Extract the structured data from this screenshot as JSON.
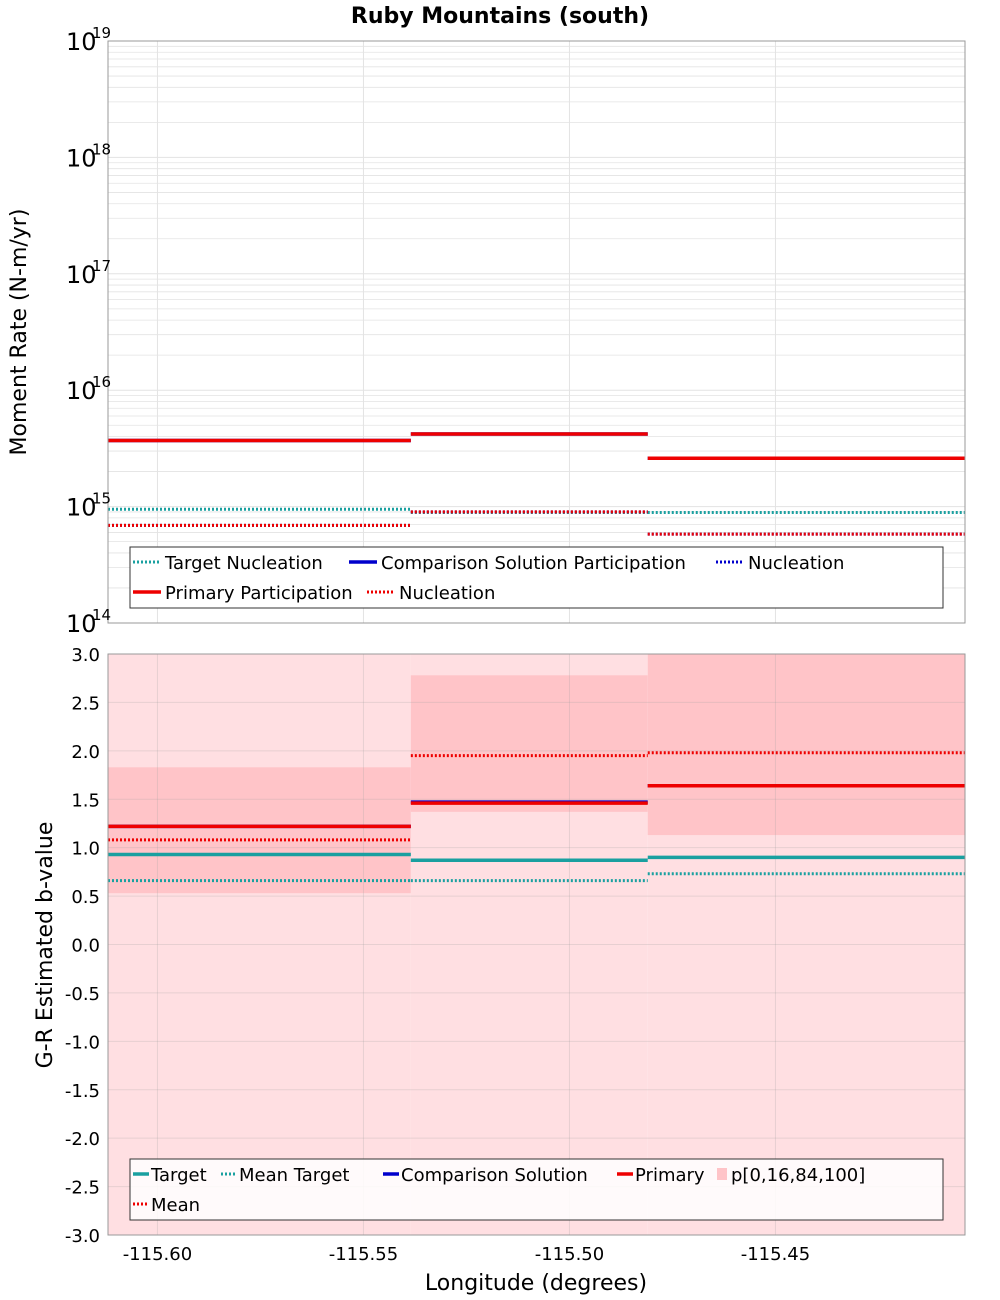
{
  "page": {
    "title": "Ruby Mountains (south)",
    "x_label": "Longitude (degrees)"
  },
  "colors": {
    "target": "#1aa0a0",
    "comparison": "#0000cc",
    "primary": "#ee0000",
    "band_outer": "#ffdfe2",
    "band_inner": "#ffc4c8",
    "grid": "#e3e3e3",
    "frame": "#999999"
  },
  "chart_data": [
    {
      "id": "moment",
      "type": "line",
      "ylabel": "Moment Rate (N-m/yr)",
      "yscale": "log",
      "ylim_exp": [
        14,
        19
      ],
      "xlim": [
        -115.612,
        -115.404
      ],
      "x_ticks": [
        -115.6,
        -115.55,
        -115.5,
        -115.45
      ],
      "y_tick_labels": [
        {
          "base": "10",
          "exp": "14",
          "value": 100000000000000.0
        },
        {
          "base": "10",
          "exp": "15",
          "value": 1000000000000000.0
        },
        {
          "base": "10",
          "exp": "16",
          "value": 1e+16
        },
        {
          "base": "10",
          "exp": "17",
          "value": 1e+17
        },
        {
          "base": "10",
          "exp": "18",
          "value": 1e+18
        },
        {
          "base": "10",
          "exp": "19",
          "value": 1e+19
        }
      ],
      "bins": [
        [
          -115.612,
          -115.5385
        ],
        [
          -115.5385,
          -115.481
        ],
        [
          -115.481,
          -115.404
        ]
      ],
      "series": [
        {
          "name": "Target Nucleation",
          "color_key": "target",
          "style": "dotted",
          "values": [
            950000000000000.0,
            890000000000000.0,
            890000000000000.0
          ]
        },
        {
          "name": "Comparison Solution Participation",
          "color_key": "comparison",
          "style": "solid",
          "values": [
            3700000000000000.0,
            4200000000000000.0,
            2600000000000000.0
          ]
        },
        {
          "name": "Comparison Nucleation",
          "color_key": "comparison",
          "style": "dotted",
          "values": [
            690000000000000.0,
            900000000000000.0,
            580000000000000.0
          ]
        },
        {
          "name": "Primary Participation",
          "color_key": "primary",
          "style": "solid",
          "values": [
            3700000000000000.0,
            4200000000000000.0,
            2600000000000000.0
          ]
        },
        {
          "name": "Primary Nucleation",
          "color_key": "primary",
          "style": "dotted",
          "values": [
            690000000000000.0,
            900000000000000.0,
            580000000000000.0
          ]
        }
      ],
      "legend": {
        "position": "bottom",
        "items": [
          {
            "label": "Target Nucleation",
            "color_key": "target",
            "style": "dotted"
          },
          {
            "label": "Comparison Solution Participation",
            "color_key": "comparison",
            "style": "solid"
          },
          {
            "label": "Nucleation",
            "color_key": "comparison",
            "style": "dotted"
          },
          {
            "label": "Primary Participation",
            "color_key": "primary",
            "style": "solid"
          },
          {
            "label": "Nucleation",
            "color_key": "primary",
            "style": "dotted"
          }
        ]
      }
    },
    {
      "id": "bvalue",
      "type": "line",
      "ylabel": "G-R Estimated b-value",
      "ylim": [
        -3.0,
        3.0
      ],
      "xlim": [
        -115.612,
        -115.404
      ],
      "x_ticks": [
        -115.6,
        -115.55,
        -115.5,
        -115.45
      ],
      "x_tick_labels": [
        "-115.60",
        "-115.55",
        "-115.50",
        "-115.45"
      ],
      "y_ticks": [
        3.0,
        2.5,
        2.0,
        1.5,
        1.0,
        0.5,
        0.0,
        -0.5,
        -1.0,
        -1.5,
        -2.0,
        -2.5,
        -3.0
      ],
      "y_tick_labels": [
        "3.0",
        "2.5",
        "2.0",
        "1.5",
        "1.0",
        "0.5",
        "0.0",
        "-0.5",
        "-1.0",
        "-1.5",
        "-2.0",
        "-2.5",
        "-3.0"
      ],
      "bins": [
        [
          -115.612,
          -115.5385
        ],
        [
          -115.5385,
          -115.481
        ],
        [
          -115.481,
          -115.404
        ]
      ],
      "percentile_bands": {
        "name": "p[0,16,84,100]",
        "p0": [
          -3.0,
          -3.0,
          -3.0
        ],
        "p16": [
          0.53,
          1.37,
          1.13
        ],
        "p84": [
          1.83,
          2.78,
          3.0
        ],
        "p100": [
          3.0,
          3.0,
          3.0
        ]
      },
      "series": [
        {
          "name": "Target",
          "color_key": "target",
          "style": "solid",
          "values": [
            0.93,
            0.87,
            0.9
          ]
        },
        {
          "name": "Mean Target",
          "color_key": "target",
          "style": "dotted",
          "values": [
            0.66,
            0.66,
            0.73
          ]
        },
        {
          "name": "Comparison Solution",
          "color_key": "comparison",
          "style": "solid",
          "values": [
            1.22,
            1.47,
            1.64
          ]
        },
        {
          "name": "Primary",
          "color_key": "primary",
          "style": "solid",
          "values": [
            1.22,
            1.46,
            1.64
          ]
        },
        {
          "name": "Mean",
          "color_key": "primary",
          "style": "dotted",
          "values": [
            1.08,
            1.95,
            1.98
          ]
        }
      ],
      "legend": {
        "position": "bottom",
        "items": [
          {
            "label": "Target",
            "color_key": "target",
            "style": "solid"
          },
          {
            "label": "Mean Target",
            "color_key": "target",
            "style": "dotted"
          },
          {
            "label": "Comparison Solution",
            "color_key": "comparison",
            "style": "solid"
          },
          {
            "label": "Primary",
            "color_key": "primary",
            "style": "solid"
          },
          {
            "label": "p[0,16,84,100]",
            "color_key": "band_inner",
            "style": "box"
          },
          {
            "label": "Mean",
            "color_key": "primary",
            "style": "dotted"
          }
        ]
      }
    }
  ]
}
